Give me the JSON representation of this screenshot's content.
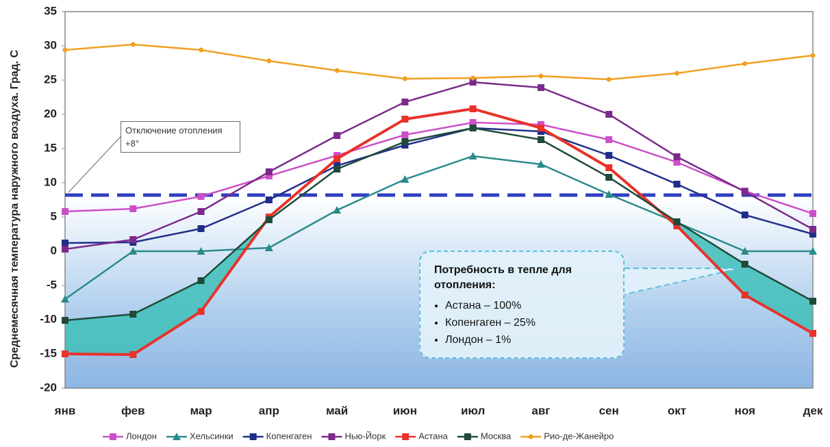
{
  "chart_data": {
    "type": "line",
    "y_label": "Среднемесячная температура наружного воздуха. Град. С",
    "categories": [
      "янв",
      "фев",
      "мар",
      "апр",
      "май",
      "июн",
      "июл",
      "авг",
      "сен",
      "окт",
      "ноя",
      "дек"
    ],
    "ylim": [
      -20,
      35
    ],
    "yticks": [
      -20,
      -15,
      -10,
      -5,
      0,
      5,
      10,
      15,
      20,
      25,
      30,
      35
    ],
    "grid": false,
    "legend": "bottom",
    "series": [
      {
        "name": "Лондон",
        "color": "#cc4fc8",
        "marker": "square",
        "values": [
          5.8,
          6.2,
          8.0,
          11.0,
          14.0,
          17.0,
          18.8,
          18.5,
          16.3,
          13.0,
          8.8,
          5.5
        ]
      },
      {
        "name": "Хельсинки",
        "color": "#2a8a8a",
        "marker": "triangle",
        "values": [
          -7.0,
          0.0,
          0.0,
          0.5,
          6.0,
          10.5,
          13.9,
          12.7,
          8.3,
          4.2,
          0.0,
          0.0
        ]
      },
      {
        "name": "Копенгаген",
        "color": "#1f2d8a",
        "marker": "square",
        "values": [
          1.2,
          1.3,
          3.3,
          7.5,
          12.5,
          15.5,
          18.0,
          17.5,
          14.0,
          9.8,
          5.3,
          2.5
        ]
      },
      {
        "name": "Нью-Йорк",
        "color": "#7b2a8a",
        "marker": "square",
        "values": [
          0.3,
          1.7,
          5.8,
          11.6,
          16.9,
          21.8,
          24.7,
          23.9,
          20.0,
          13.8,
          8.7,
          3.2
        ]
      },
      {
        "name": "Астана",
        "color": "#e8322a",
        "marker": "square",
        "values": [
          -15.0,
          -15.1,
          -8.8,
          5.0,
          13.5,
          19.3,
          20.8,
          18.0,
          12.2,
          3.7,
          -6.4,
          -12.0
        ]
      },
      {
        "name": "Москва",
        "color": "#1f4a3a",
        "marker": "square",
        "values": [
          -10.1,
          -9.2,
          -4.3,
          4.6,
          12.0,
          16.0,
          18.0,
          16.3,
          10.8,
          4.3,
          -1.9,
          -7.3
        ]
      },
      {
        "name": "Рио-де-Жанейро",
        "color": "#f0a020",
        "marker": "circle",
        "values": [
          29.4,
          30.2,
          29.4,
          27.8,
          26.4,
          25.2,
          25.3,
          25.6,
          25.1,
          26.0,
          27.4,
          28.6
        ]
      }
    ],
    "reference_line": {
      "value": 8.2,
      "color": "#2e3fbf",
      "label": "Отключение отопления +8°"
    },
    "callout": {
      "title": "Потребность в тепле для отопления:",
      "items": [
        "Астана – 100%",
        "Копенгаген – 25%",
        "Лондон – 1%"
      ]
    }
  }
}
